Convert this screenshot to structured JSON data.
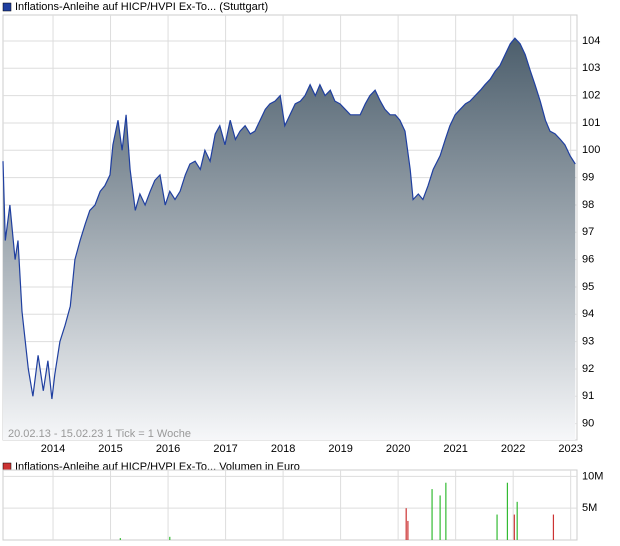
{
  "chart_data": [
    {
      "type": "area",
      "legend": "Inflations-Anleihe auf HICP/HVPI Ex-To... (Stuttgart)",
      "footnote": "20.02.13 - 15.02.23   1 Tick = 1 Woche",
      "x": [
        2013.13,
        2013.17,
        2013.25,
        2013.34,
        2013.39,
        2013.46,
        2013.57,
        2013.65,
        2013.74,
        2013.83,
        2013.91,
        2013.98,
        2014.03,
        2014.12,
        2014.21,
        2014.3,
        2014.38,
        2014.47,
        2014.56,
        2014.64,
        2014.73,
        2014.82,
        2014.9,
        2014.99,
        2015.04,
        2015.13,
        2015.2,
        2015.27,
        2015.34,
        2015.43,
        2015.51,
        2015.6,
        2015.69,
        2015.77,
        2015.86,
        2015.95,
        2016.03,
        2016.12,
        2016.21,
        2016.3,
        2016.38,
        2016.47,
        2016.56,
        2016.64,
        2016.73,
        2016.82,
        2016.9,
        2016.99,
        2017.08,
        2017.17,
        2017.25,
        2017.34,
        2017.43,
        2017.51,
        2017.6,
        2017.69,
        2017.77,
        2017.86,
        2017.95,
        2018.03,
        2018.12,
        2018.21,
        2018.3,
        2018.38,
        2018.47,
        2018.56,
        2018.64,
        2018.73,
        2018.82,
        2018.9,
        2018.99,
        2019.08,
        2019.17,
        2019.25,
        2019.34,
        2019.43,
        2019.51,
        2019.6,
        2019.69,
        2019.77,
        2019.86,
        2019.95,
        2020.03,
        2020.12,
        2020.21,
        2020.26,
        2020.35,
        2020.43,
        2020.52,
        2020.61,
        2020.73,
        2020.82,
        2020.9,
        2020.99,
        2021.08,
        2021.17,
        2021.25,
        2021.34,
        2021.43,
        2021.51,
        2021.6,
        2021.69,
        2021.77,
        2021.86,
        2021.95,
        2022.03,
        2022.12,
        2022.21,
        2022.3,
        2022.38,
        2022.47,
        2022.56,
        2022.64,
        2022.73,
        2022.82,
        2022.9,
        2022.99,
        2023.08
      ],
      "series": [
        {
          "name": "Inflations-Anleihe auf HICP/HVPI Ex-To... (Stuttgart)",
          "color": "#1f3fa0",
          "values": [
            99.6,
            96.7,
            98.0,
            96.0,
            96.7,
            94.1,
            92.0,
            91.0,
            92.5,
            91.2,
            92.3,
            90.9,
            91.8,
            93.0,
            93.6,
            94.3,
            96.0,
            96.7,
            97.3,
            97.8,
            98.0,
            98.5,
            98.7,
            99.1,
            100.2,
            101.1,
            100.0,
            101.3,
            99.3,
            97.8,
            98.4,
            98.0,
            98.5,
            98.9,
            99.1,
            98.0,
            98.5,
            98.2,
            98.5,
            99.1,
            99.5,
            99.6,
            99.3,
            100.0,
            99.6,
            100.6,
            100.9,
            100.2,
            101.1,
            100.4,
            100.7,
            100.9,
            100.6,
            100.7,
            101.1,
            101.5,
            101.7,
            101.8,
            102.0,
            100.9,
            101.3,
            101.7,
            101.8,
            102.0,
            102.4,
            102.0,
            102.4,
            102.0,
            102.2,
            101.8,
            101.7,
            101.5,
            101.3,
            101.3,
            101.3,
            101.7,
            102.0,
            102.2,
            101.8,
            101.5,
            101.3,
            101.3,
            101.1,
            100.7,
            99.3,
            98.2,
            98.4,
            98.2,
            98.7,
            99.3,
            99.8,
            100.4,
            100.9,
            101.3,
            101.5,
            101.7,
            101.8,
            102.0,
            102.2,
            102.4,
            102.6,
            102.9,
            103.1,
            103.5,
            103.9,
            104.1,
            103.9,
            103.5,
            102.9,
            102.4,
            101.8,
            101.1,
            100.7,
            100.6,
            100.4,
            100.2,
            99.8,
            99.5
          ]
        }
      ],
      "xlim": [
        2013.13,
        2023.11
      ],
      "xticks": [
        2014,
        2015,
        2016,
        2017,
        2018,
        2019,
        2020,
        2021,
        2022,
        2023
      ],
      "ylim": [
        89.4,
        104.95
      ],
      "yticks": [
        90,
        91,
        92,
        93,
        94,
        95,
        96,
        97,
        98,
        99,
        100,
        101,
        102,
        103,
        104
      ],
      "grid": true
    },
    {
      "type": "bar",
      "legend": "Inflations-Anleihe auf HICP/HVPI Ex-To... Volumen in Euro",
      "x": [
        2015.17,
        2016.03,
        2020.14,
        2020.17,
        2020.59,
        2020.73,
        2020.83,
        2021.72,
        2021.9,
        2022.02,
        2022.07,
        2022.7
      ],
      "values": [
        300000,
        500000,
        5000000,
        3000000,
        8000000,
        7000000,
        9000000,
        4000000,
        9000000,
        4000000,
        6000000,
        4000000
      ],
      "colors": [
        "#33bb33",
        "#33bb33",
        "#cc3333",
        "#cc3333",
        "#33bb33",
        "#33bb33",
        "#33bb33",
        "#33bb33",
        "#33bb33",
        "#cc3333",
        "#33bb33",
        "#cc3333"
      ],
      "xlim": [
        2013.13,
        2023.11
      ],
      "xticks": [
        2014,
        2015,
        2016,
        2017,
        2018,
        2019,
        2020,
        2021,
        2022,
        2023
      ],
      "ylim": [
        0,
        11000000
      ],
      "yticks": [
        {
          "value": 5000000,
          "label": "5M"
        },
        {
          "value": 10000000,
          "label": "10M"
        }
      ],
      "grid": true
    }
  ]
}
